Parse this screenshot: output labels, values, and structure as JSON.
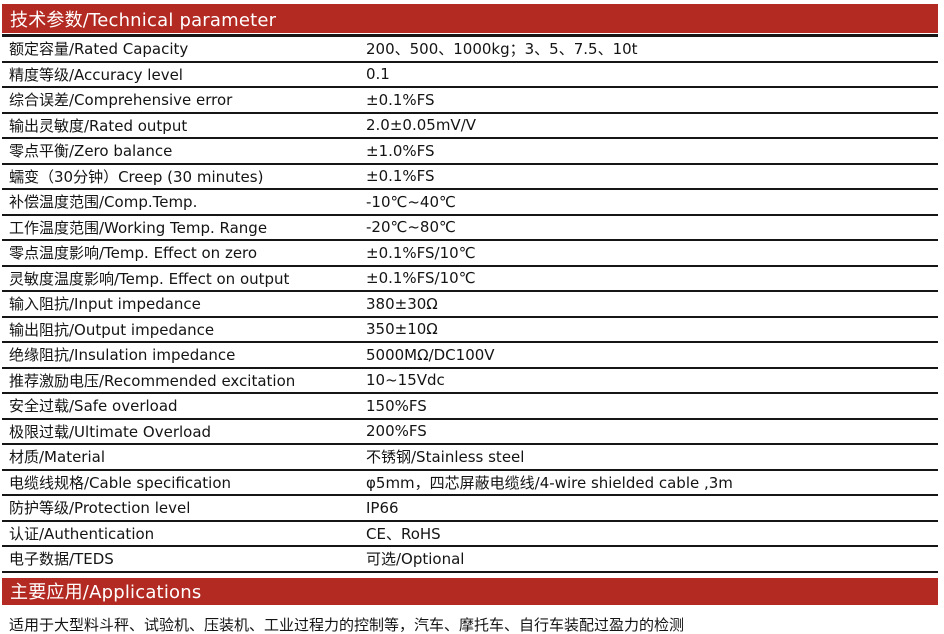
{
  "colors": {
    "accent": "#b32a22",
    "line": "#161616",
    "text": "#141414",
    "header_text": "#ffffff",
    "background": "#ffffff"
  },
  "technical_section": {
    "title": "技术参数/Technical parameter"
  },
  "parameters": [
    {
      "label": "额定容量/Rated Capacity",
      "value": "200、500、1000kg；3、5、7.5、10t"
    },
    {
      "label": "精度等级/Accuracy level",
      "value": "0.1"
    },
    {
      "label": "综合误差/Comprehensive error",
      "value": "±0.1%FS"
    },
    {
      "label": "输出灵敏度/Rated output",
      "value": "2.0±0.05mV/V"
    },
    {
      "label": "零点平衡/Zero balance",
      "value": "±1.0%FS"
    },
    {
      "label": "蠕变（30分钟）Creep (30 minutes)",
      "value": "±0.1%FS"
    },
    {
      "label": "补偿温度范围/Comp.Temp.",
      "value": "-10℃~40℃"
    },
    {
      "label": "工作温度范围/Working Temp. Range",
      "value": "-20℃~80℃"
    },
    {
      "label": "零点温度影响/Temp. Effect on zero",
      "value": "±0.1%FS/10℃"
    },
    {
      "label": "灵敏度温度影响/Temp. Effect on output",
      "value": "±0.1%FS/10℃"
    },
    {
      "label": "输入阻抗/Input impedance",
      "value": "380±30Ω"
    },
    {
      "label": "输出阻抗/Output impedance",
      "value": "350±10Ω"
    },
    {
      "label": "绝缘阻抗/Insulation impedance",
      "value": "5000MΩ/DC100V"
    },
    {
      "label": "推荐激励电压/Recommended excitation",
      "value": "10~15Vdc"
    },
    {
      "label": "安全过载/Safe overload",
      "value": "150%FS"
    },
    {
      "label": "极限过载/Ultimate Overload",
      "value": "200%FS"
    },
    {
      "label": "材质/Material",
      "value": "不锈钢/Stainless steel"
    },
    {
      "label": "电缆线规格/Cable specification",
      "value": "φ5mm，四芯屏蔽电缆线/4-wire shielded cable ,3m"
    },
    {
      "label": "防护等级/Protection level",
      "value": "IP66"
    },
    {
      "label": "认证/Authentication",
      "value": "CE、RoHS"
    },
    {
      "label": "电子数据/TEDS",
      "value": "可选/Optional"
    }
  ],
  "applications_section": {
    "title": "主要应用/Applications",
    "description": "适用于大型料斗秤、试验机、压装机、工业过程力的控制等，汽车、摩托车、自行车装配过盈力的检测"
  }
}
